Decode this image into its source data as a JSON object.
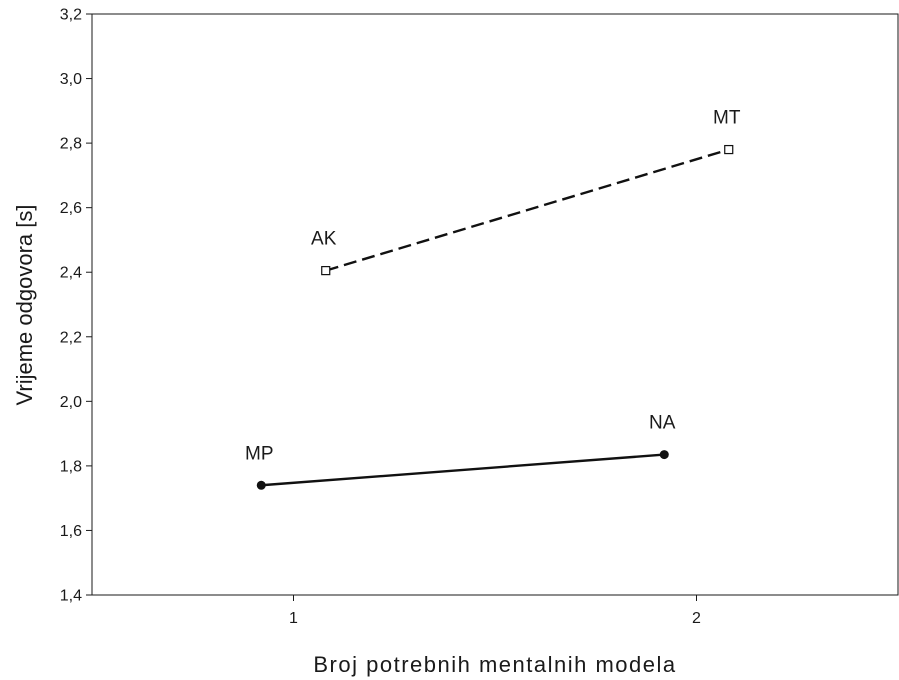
{
  "chart_data": {
    "type": "line",
    "title": "",
    "xlabel": "Broj potrebnih mentalnih modela",
    "ylabel": "Vrijeme odgovora [s]",
    "xlim": [
      0.5,
      2.5
    ],
    "ylim": [
      1.4,
      3.2
    ],
    "x_ticks": [
      1,
      2
    ],
    "x_tick_labels": [
      "1",
      "2"
    ],
    "y_ticks": [
      1.4,
      1.6,
      1.8,
      2.0,
      2.2,
      2.4,
      2.6,
      2.8,
      3.0,
      3.2
    ],
    "y_tick_labels": [
      "1,4",
      "1,6",
      "1,8",
      "2,0",
      "2,2",
      "2,4",
      "2,6",
      "2,8",
      "3,0",
      "3,2"
    ],
    "grid": false,
    "legend": "none",
    "series": [
      {
        "line_style": "solid",
        "marker": "filled-circle",
        "color": "#111111",
        "points": [
          {
            "x": 0.92,
            "y": 1.74,
            "label": "MP"
          },
          {
            "x": 1.92,
            "y": 1.835,
            "label": "NA"
          }
        ]
      },
      {
        "line_style": "dashed",
        "marker": "open-square",
        "color": "#111111",
        "points": [
          {
            "x": 1.08,
            "y": 2.405,
            "label": "AK"
          },
          {
            "x": 2.08,
            "y": 2.78,
            "label": "MT"
          }
        ]
      }
    ]
  }
}
